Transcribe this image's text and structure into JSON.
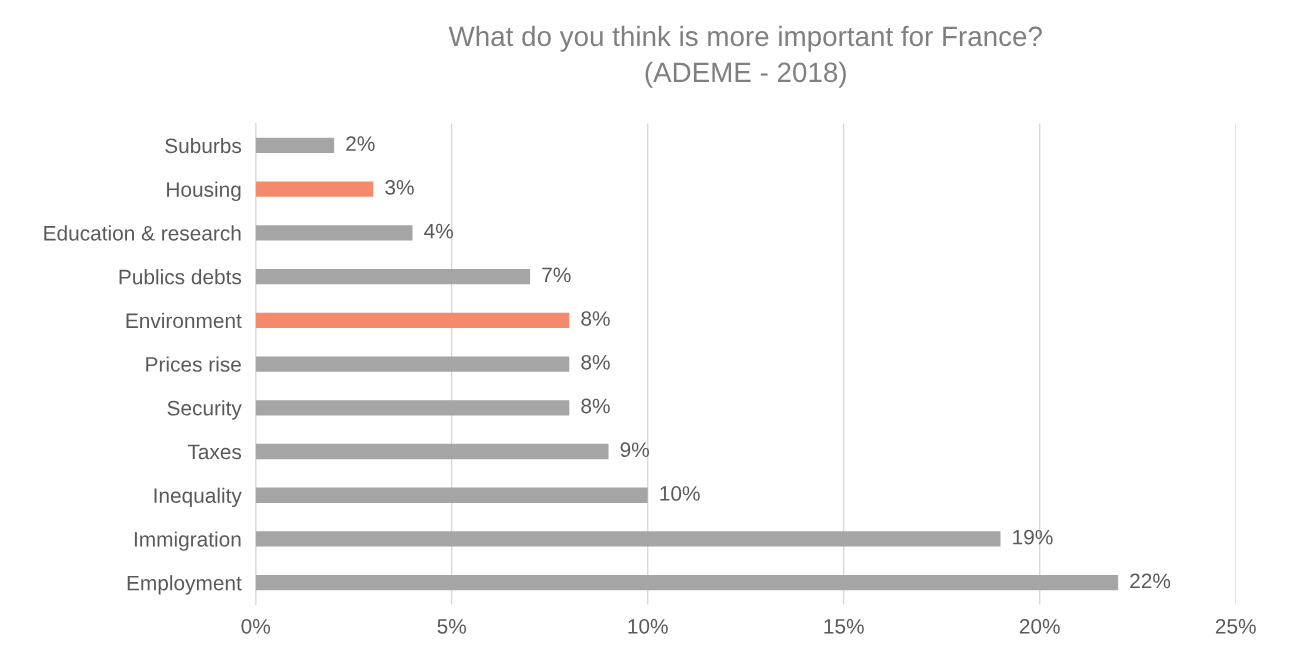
{
  "chart_data": {
    "type": "bar",
    "orientation": "horizontal",
    "title": "What do you think is more important for France?\n(ADEME - 2018)",
    "categories": [
      "Suburbs",
      "Housing",
      "Education & research",
      "Publics debts",
      "Environment",
      "Prices rise",
      "Security",
      "Taxes",
      "Inequality",
      "Immigration",
      "Employment"
    ],
    "values": [
      2,
      3,
      4,
      7,
      8,
      8,
      8,
      9,
      10,
      19,
      22
    ],
    "colors": [
      "#a5a5a5",
      "#f4896b",
      "#a5a5a5",
      "#a5a5a5",
      "#f4896b",
      "#a5a5a5",
      "#a5a5a5",
      "#a5a5a5",
      "#a5a5a5",
      "#a5a5a5",
      "#a5a5a5"
    ],
    "value_labels": [
      "2%",
      "3%",
      "4%",
      "7%",
      "8%",
      "8%",
      "8%",
      "9%",
      "10%",
      "19%",
      "22%"
    ],
    "xlim": [
      0,
      25
    ],
    "xticks": [
      {
        "value": 0,
        "label": "0%"
      },
      {
        "value": 5,
        "label": "5%"
      },
      {
        "value": 10,
        "label": "10%"
      },
      {
        "value": 15,
        "label": "15%"
      },
      {
        "value": 20,
        "label": "20%"
      },
      {
        "value": 25,
        "label": "25%"
      }
    ],
    "grid": "x"
  }
}
